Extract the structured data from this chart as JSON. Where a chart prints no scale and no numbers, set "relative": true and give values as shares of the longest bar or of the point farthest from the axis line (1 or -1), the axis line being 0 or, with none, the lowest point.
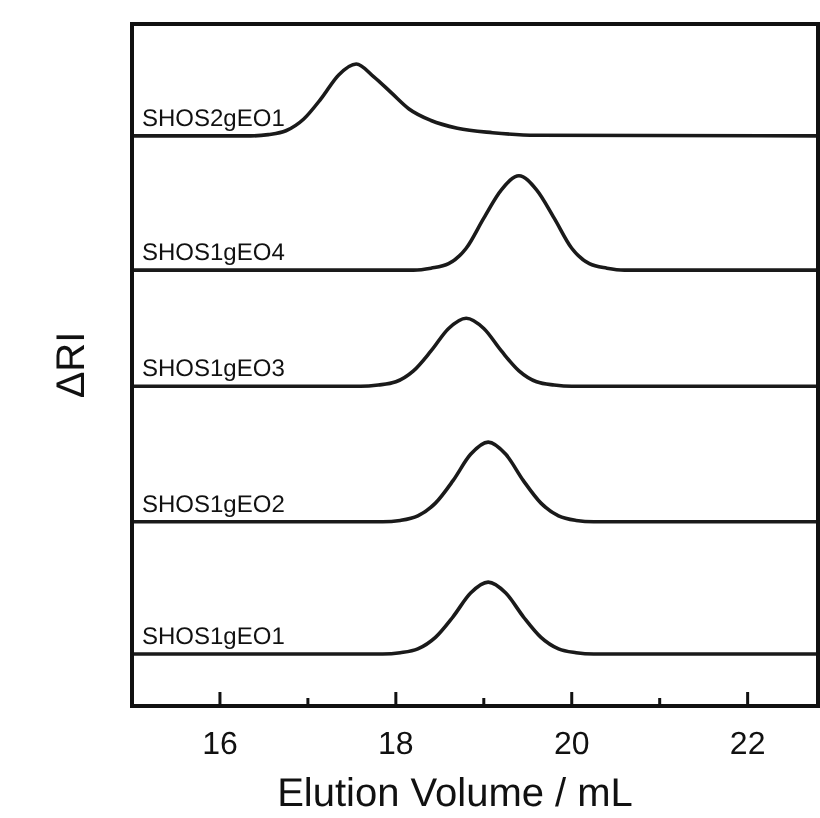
{
  "chart_data": {
    "type": "line",
    "relative": true,
    "xlabel": "Elution Volume / mL",
    "ylabel": "ΔRI",
    "xlim": [
      15,
      22.8
    ],
    "xticks": [
      16,
      {
        "value": 17,
        "label": null
      },
      18,
      {
        "value": 19,
        "label": null
      },
      20,
      {
        "value": 21,
        "label": null
      },
      22
    ],
    "grid": false,
    "marker": "none",
    "line_style": "solid",
    "tick_labels": "x",
    "series": [
      {
        "name": "SHOS2gEO1",
        "color": "#1a1a1a",
        "x": [
          15,
          16.35,
          16.55,
          16.75,
          16.95,
          17.15,
          17.35,
          17.55,
          17.75,
          17.95,
          18.15,
          18.4,
          18.7,
          19.1,
          19.6,
          22.8
        ],
        "values": [
          0.888,
          0.888,
          0.89,
          0.896,
          0.914,
          0.946,
          0.983,
          1.0,
          0.98,
          0.955,
          0.93,
          0.912,
          0.9,
          0.893,
          0.889,
          0.888
        ]
      },
      {
        "name": "SHOS1gEO4",
        "color": "#1a1a1a",
        "x": [
          15,
          18.2,
          18.4,
          18.6,
          18.8,
          19.0,
          19.2,
          19.4,
          19.6,
          19.8,
          20.0,
          20.2,
          20.4,
          20.6,
          22.8
        ],
        "values": [
          0.679,
          0.679,
          0.682,
          0.689,
          0.713,
          0.76,
          0.804,
          0.826,
          0.804,
          0.76,
          0.713,
          0.689,
          0.682,
          0.679,
          0.679
        ]
      },
      {
        "name": "SHOS1gEO3",
        "color": "#1a1a1a",
        "x": [
          15,
          17.6,
          17.8,
          18.0,
          18.2,
          18.4,
          18.6,
          18.8,
          19.0,
          19.2,
          19.4,
          19.6,
          19.8,
          20.0,
          22.8
        ],
        "values": [
          0.498,
          0.498,
          0.5,
          0.505,
          0.522,
          0.553,
          0.588,
          0.604,
          0.588,
          0.553,
          0.522,
          0.505,
          0.5,
          0.498,
          0.498
        ]
      },
      {
        "name": "SHOS1gEO2",
        "color": "#1a1a1a",
        "x": [
          15,
          17.85,
          18.05,
          18.25,
          18.45,
          18.65,
          18.85,
          19.05,
          19.25,
          19.45,
          19.65,
          19.85,
          20.05,
          20.25,
          22.8
        ],
        "values": [
          0.287,
          0.287,
          0.289,
          0.296,
          0.316,
          0.351,
          0.392,
          0.411,
          0.392,
          0.351,
          0.316,
          0.296,
          0.289,
          0.287,
          0.287
        ]
      },
      {
        "name": "SHOS1gEO1",
        "color": "#1a1a1a",
        "x": [
          15,
          17.85,
          18.05,
          18.25,
          18.45,
          18.65,
          18.85,
          19.05,
          19.25,
          19.45,
          19.65,
          19.85,
          20.05,
          20.25,
          22.8
        ],
        "values": [
          0.081,
          0.081,
          0.083,
          0.089,
          0.107,
          0.139,
          0.176,
          0.193,
          0.176,
          0.139,
          0.107,
          0.089,
          0.083,
          0.081,
          0.081
        ]
      }
    ]
  }
}
